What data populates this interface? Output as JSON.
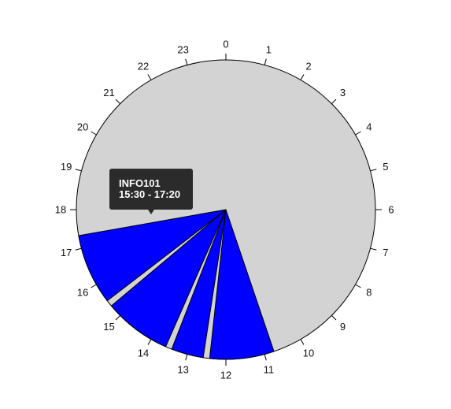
{
  "chart_data": {
    "type": "pie",
    "title": "",
    "hour_labels": [
      "0",
      "1",
      "2",
      "3",
      "4",
      "5",
      "6",
      "7",
      "8",
      "9",
      "10",
      "11",
      "12",
      "13",
      "14",
      "15",
      "16",
      "17",
      "18",
      "19",
      "20",
      "21",
      "22",
      "23"
    ],
    "background_color": "#d3d3d3",
    "sessions": [
      {
        "start_hour": 10.75,
        "end_hour": 12.4167
      },
      {
        "start_hour": 12.5833,
        "end_hour": 13.4167
      },
      {
        "start_hour": 13.5833,
        "end_hour": 15.3333
      },
      {
        "start_hour": 15.5,
        "end_hour": 17.3333
      }
    ],
    "session_color": "#0000ff",
    "tooltip": {
      "title": "INFO101",
      "time_range": "15:30 - 17:20"
    }
  }
}
